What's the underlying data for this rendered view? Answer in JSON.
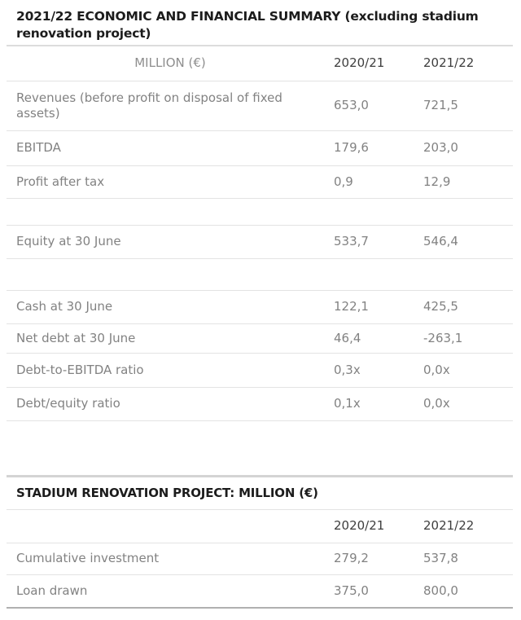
{
  "document": {
    "title": "2021/22 ECONOMIC AND FINANCIAL SUMMARY (excluding stadium renovation project)"
  },
  "summary_table": {
    "header": {
      "label": "MILLION (€)",
      "y1": "2020/21",
      "y2": "2021/22"
    },
    "rows": [
      {
        "label": "Revenues (before profit on disposal of fixed assets)",
        "y1": "653,0",
        "y2": "721,5"
      },
      {
        "label": "EBITDA",
        "y1": "179,6",
        "y2": "203,0"
      },
      {
        "label": "Profit after tax",
        "y1": "0,9",
        "y2": "12,9"
      },
      {
        "label": "Equity at 30 June",
        "y1": "533,7",
        "y2": "546,4"
      },
      {
        "label": "Cash at 30 June",
        "y1": "122,1",
        "y2": "425,5"
      },
      {
        "label": "Net debt at 30 June",
        "y1": "46,4",
        "y2": "-263,1"
      },
      {
        "label": "Debt-to-EBITDA ratio",
        "y1": "0,3x",
        "y2": "0,0x"
      },
      {
        "label": "Debt/equity ratio",
        "y1": "0,1x",
        "y2": "0,0x"
      }
    ]
  },
  "stadium_table": {
    "title": "STADIUM RENOVATION PROJECT: MILLION (€)",
    "header": {
      "y1": "2020/21",
      "y2": "2021/22"
    },
    "rows": [
      {
        "label": "Cumulative investment",
        "y1": "279,2",
        "y2": "537,8"
      },
      {
        "label": "Loan drawn",
        "y1": "375,0",
        "y2": "800,0"
      }
    ]
  },
  "colors": {
    "title_text": "#1c1c1c",
    "body_text": "#828282",
    "year_header_text": "#3e3e3e",
    "column_header_text": "#8e8e8e",
    "row_divider": "#e3e3e3",
    "header_top_rule": "#dcdcdc",
    "section_top_rule": "#d4d4d4",
    "bottom_rule": "#b0b0b0"
  }
}
